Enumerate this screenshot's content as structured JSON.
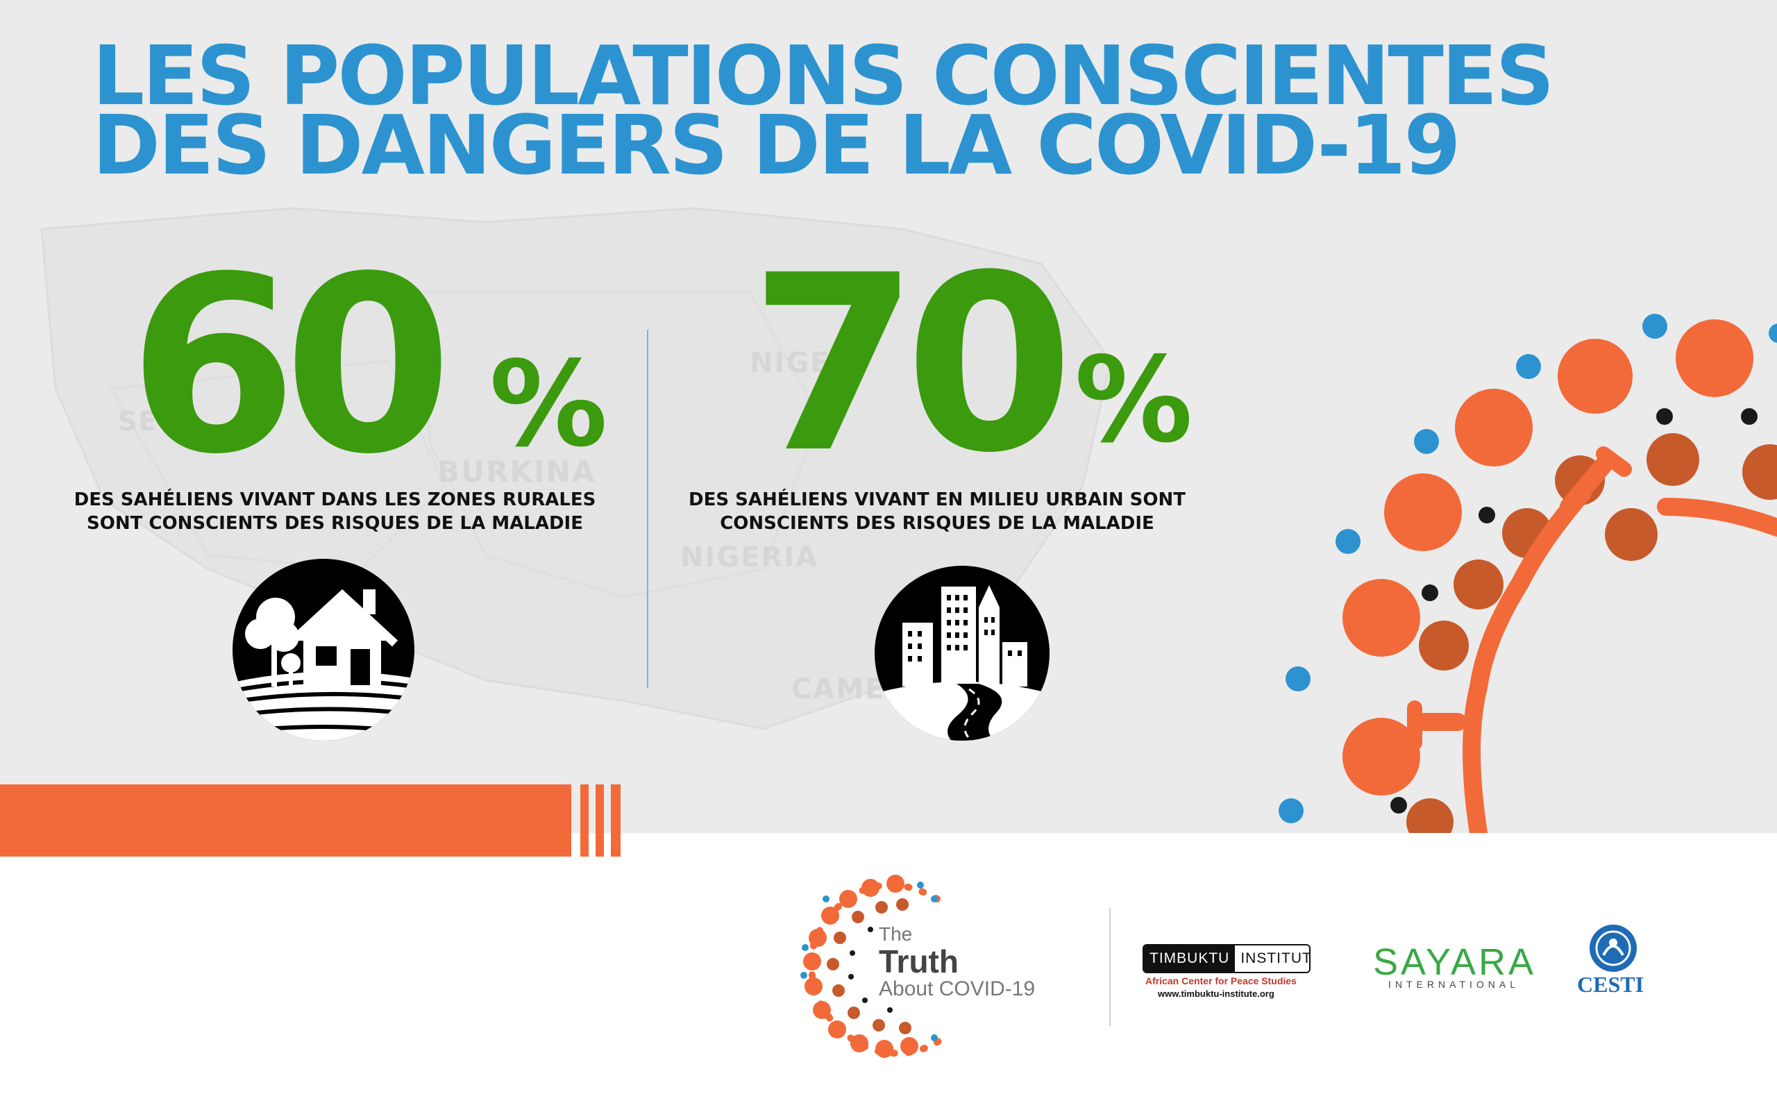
{
  "title": {
    "line1": "LES POPULATIONS CONSCIENTES",
    "line2": "DES DANGERS DE LA COVID-19"
  },
  "map_labels": [
    "BURKINA",
    "NIGERIA",
    "NIGER",
    "SE",
    "CAME"
  ],
  "stats": [
    {
      "value": "60",
      "unit": "%",
      "line1": "DES SAHÉLIENS VIVANT DANS LES ZONES RURALES",
      "line2": "SONT CONSCIENTS DES RISQUES DE LA MALADIE",
      "icon": "rural-house-icon"
    },
    {
      "value": "70",
      "unit": "%",
      "line1": "DES SAHÉLIENS VIVANT EN MILIEU URBAIN SONT",
      "line2": "CONSCIENTS DES RISQUES DE LA MALADIE",
      "icon": "city-road-icon"
    }
  ],
  "colors": {
    "title_blue": "#2d93d0",
    "stat_green": "#3c9a0e",
    "accent_orange": "#f26a39",
    "brown": "#c65a2b",
    "dot_blue": "#2d93d0",
    "background": "#ebebeb"
  },
  "footer": {
    "truth_logo": {
      "the": "The",
      "truth": "Truth",
      "about": "About COVID-19"
    },
    "timbuktu": {
      "left": "TIMBUKTU",
      "right": "INSTITUTE",
      "sub": "African Center for Peace Studies",
      "url": "www.timbuktu-institute.org"
    },
    "sayara": {
      "name": "SAYARA",
      "sub": "INTERNATIONAL"
    },
    "cesti": {
      "name": "CESTI"
    }
  }
}
